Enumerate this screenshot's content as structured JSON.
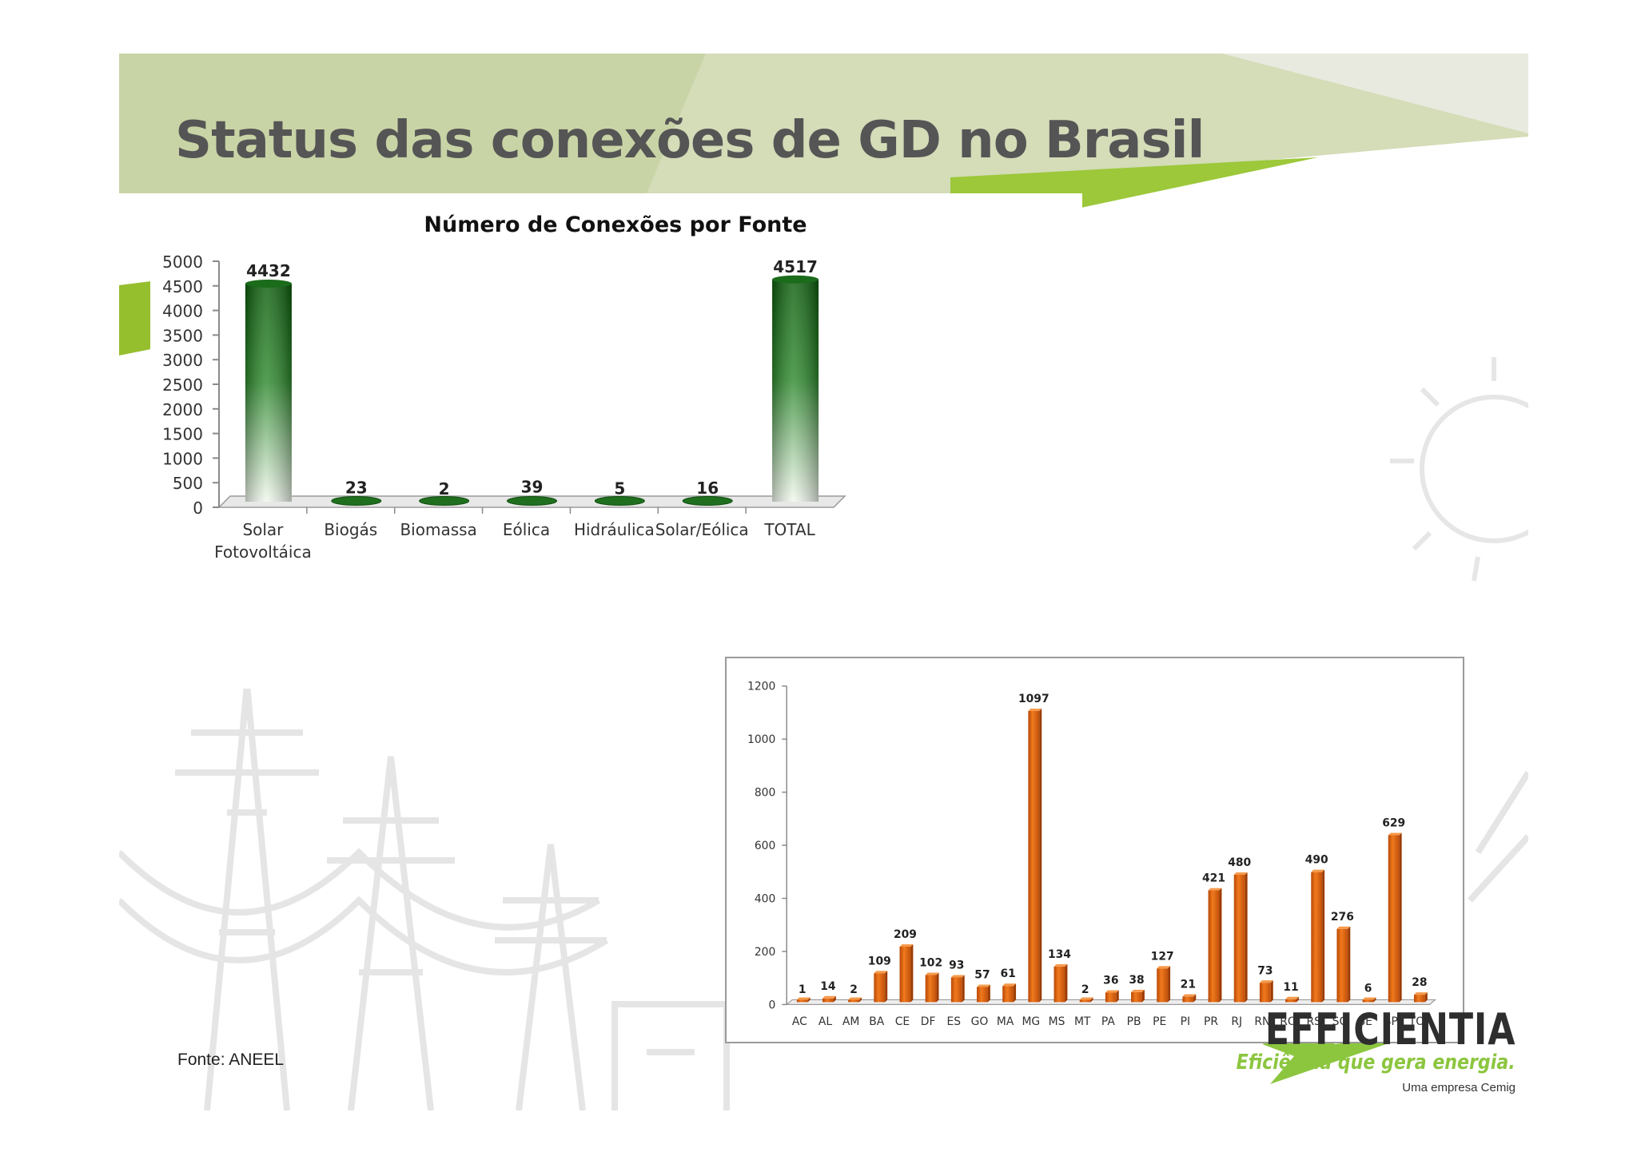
{
  "slide": {
    "title": "Status das conexões de GD no Brasil",
    "source": "Fonte: ANEEL"
  },
  "logo": {
    "wordmark": "EFFICIENTIA",
    "tagline": "Eficiência que gera energia.",
    "subtitle": "Uma empresa Cemig",
    "accent_color": "#8cc63f"
  },
  "chart_data": [
    {
      "type": "bar",
      "title": "Número de Conexões por Fonte",
      "categories": [
        "Solar Fotovoltáica",
        "Biogás",
        "Biomassa",
        "Eólica",
        "Hidráulica",
        "Solar/Eólica",
        "TOTAL"
      ],
      "values": [
        4432,
        23,
        2,
        39,
        5,
        16,
        4517
      ],
      "yticks": [
        0,
        500,
        1000,
        1500,
        2000,
        2500,
        3000,
        3500,
        4000,
        4500,
        5000
      ],
      "ylim": [
        0,
        5000
      ],
      "grid": false,
      "bar_color": "#1f6f1f",
      "data_labels": true,
      "xlabel": "",
      "ylabel": ""
    },
    {
      "type": "bar",
      "categories": [
        "AC",
        "AL",
        "AM",
        "BA",
        "CE",
        "DF",
        "ES",
        "GO",
        "MA",
        "MG",
        "MS",
        "MT",
        "PA",
        "PB",
        "PE",
        "PI",
        "PR",
        "RJ",
        "RN",
        "RO",
        "RS",
        "SC",
        "SE",
        "SP",
        "TO"
      ],
      "values": [
        1,
        14,
        2,
        109,
        209,
        102,
        93,
        57,
        61,
        1097,
        134,
        2,
        36,
        38,
        127,
        21,
        421,
        480,
        73,
        11,
        490,
        276,
        6,
        629,
        28
      ],
      "yticks": [
        0,
        200,
        400,
        600,
        800,
        1000,
        1200
      ],
      "ylim": [
        0,
        1200
      ],
      "grid": false,
      "bar_color": "#e8620c",
      "data_labels": true,
      "xlabel": "",
      "ylabel": ""
    }
  ]
}
